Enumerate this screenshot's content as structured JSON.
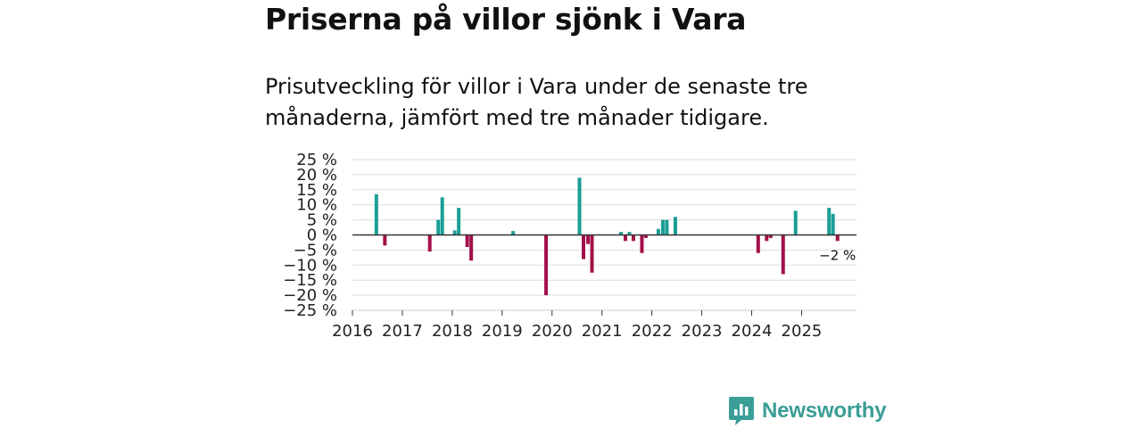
{
  "header": {
    "title": "Priserna på villor sjönk i Vara",
    "subtitle": "Prisutveckling för villor i Vara under de senaste tre månaderna, jämfört med tre månader tidigare."
  },
  "brand": {
    "name": "Newsworthy",
    "icon": "newsworthy-logo-icon"
  },
  "colors": {
    "positive": "#1a9e96",
    "negative": "#a3104a",
    "grid": "#dddddd",
    "zero_line": "#333333"
  },
  "chart_data": {
    "type": "bar",
    "title": "Priserna på villor sjönk i Vara",
    "subtitle": "Prisutveckling för villor i Vara under de senaste tre månaderna, jämfört med tre månader tidigare.",
    "xlabel": "",
    "ylabel": "",
    "ylim": [
      -25,
      25
    ],
    "xlim": [
      2016.0,
      2026.1
    ],
    "yticks": [
      25,
      20,
      15,
      10,
      5,
      0,
      -5,
      -10,
      -15,
      -20,
      -25
    ],
    "ytick_labels": [
      "25 %",
      "20 %",
      "15 %",
      "10 %",
      "5 %",
      "0 %",
      "−5 %",
      "−10 %",
      "−15 %",
      "−20 %",
      "−25 %"
    ],
    "xticks": [
      2016,
      2017,
      2018,
      2019,
      2020,
      2021,
      2022,
      2023,
      2024,
      2025
    ],
    "grid": true,
    "last_value_label": "−2 %",
    "series": [
      {
        "name": "Prisutveckling",
        "x": [
          2016.48,
          2016.65,
          2017.55,
          2017.72,
          2017.8,
          2018.05,
          2018.13,
          2018.3,
          2018.38,
          2019.22,
          2019.88,
          2020.55,
          2020.63,
          2020.72,
          2020.8,
          2021.38,
          2021.47,
          2021.55,
          2021.63,
          2021.8,
          2021.88,
          2022.13,
          2022.22,
          2022.3,
          2022.47,
          2024.13,
          2024.3,
          2024.38,
          2024.63,
          2024.88,
          2025.55,
          2025.63,
          2025.72
        ],
        "values": [
          13.5,
          -3.5,
          -5.5,
          5,
          12.5,
          1.5,
          9,
          -4,
          -8.5,
          1.3,
          -20,
          19,
          -8,
          -3,
          -12.5,
          1,
          -2,
          1,
          -2,
          -6,
          -1,
          2,
          5,
          5,
          6,
          -6,
          -2,
          -1,
          -13,
          8,
          9,
          7,
          -2
        ]
      }
    ]
  }
}
